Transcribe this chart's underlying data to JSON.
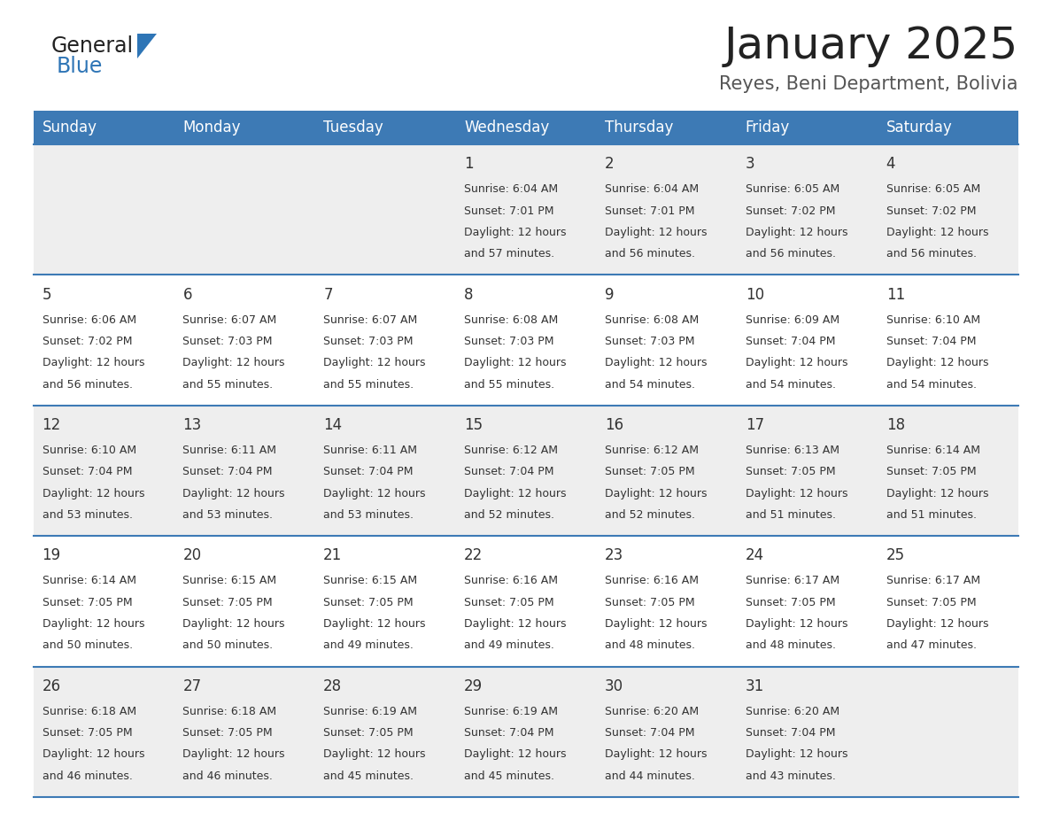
{
  "title": "January 2025",
  "subtitle": "Reyes, Beni Department, Bolivia",
  "header_bg_color": "#3D7AB5",
  "header_text_color": "#FFFFFF",
  "row_bg_colors": [
    "#EEEEEE",
    "#FFFFFF",
    "#EEEEEE",
    "#FFFFFF",
    "#EEEEEE"
  ],
  "cell_text_color": "#333333",
  "day_num_color": "#333333",
  "divider_color": "#3D7AB5",
  "days_of_week": [
    "Sunday",
    "Monday",
    "Tuesday",
    "Wednesday",
    "Thursday",
    "Friday",
    "Saturday"
  ],
  "weeks": [
    [
      {
        "day": null,
        "info": null
      },
      {
        "day": null,
        "info": null
      },
      {
        "day": null,
        "info": null
      },
      {
        "day": 1,
        "info": {
          "sunrise": "6:04 AM",
          "sunset": "7:01 PM",
          "daylight": "12 hours",
          "daylight2": "and 57 minutes."
        }
      },
      {
        "day": 2,
        "info": {
          "sunrise": "6:04 AM",
          "sunset": "7:01 PM",
          "daylight": "12 hours",
          "daylight2": "and 56 minutes."
        }
      },
      {
        "day": 3,
        "info": {
          "sunrise": "6:05 AM",
          "sunset": "7:02 PM",
          "daylight": "12 hours",
          "daylight2": "and 56 minutes."
        }
      },
      {
        "day": 4,
        "info": {
          "sunrise": "6:05 AM",
          "sunset": "7:02 PM",
          "daylight": "12 hours",
          "daylight2": "and 56 minutes."
        }
      }
    ],
    [
      {
        "day": 5,
        "info": {
          "sunrise": "6:06 AM",
          "sunset": "7:02 PM",
          "daylight": "12 hours",
          "daylight2": "and 56 minutes."
        }
      },
      {
        "day": 6,
        "info": {
          "sunrise": "6:07 AM",
          "sunset": "7:03 PM",
          "daylight": "12 hours",
          "daylight2": "and 55 minutes."
        }
      },
      {
        "day": 7,
        "info": {
          "sunrise": "6:07 AM",
          "sunset": "7:03 PM",
          "daylight": "12 hours",
          "daylight2": "and 55 minutes."
        }
      },
      {
        "day": 8,
        "info": {
          "sunrise": "6:08 AM",
          "sunset": "7:03 PM",
          "daylight": "12 hours",
          "daylight2": "and 55 minutes."
        }
      },
      {
        "day": 9,
        "info": {
          "sunrise": "6:08 AM",
          "sunset": "7:03 PM",
          "daylight": "12 hours",
          "daylight2": "and 54 minutes."
        }
      },
      {
        "day": 10,
        "info": {
          "sunrise": "6:09 AM",
          "sunset": "7:04 PM",
          "daylight": "12 hours",
          "daylight2": "and 54 minutes."
        }
      },
      {
        "day": 11,
        "info": {
          "sunrise": "6:10 AM",
          "sunset": "7:04 PM",
          "daylight": "12 hours",
          "daylight2": "and 54 minutes."
        }
      }
    ],
    [
      {
        "day": 12,
        "info": {
          "sunrise": "6:10 AM",
          "sunset": "7:04 PM",
          "daylight": "12 hours",
          "daylight2": "and 53 minutes."
        }
      },
      {
        "day": 13,
        "info": {
          "sunrise": "6:11 AM",
          "sunset": "7:04 PM",
          "daylight": "12 hours",
          "daylight2": "and 53 minutes."
        }
      },
      {
        "day": 14,
        "info": {
          "sunrise": "6:11 AM",
          "sunset": "7:04 PM",
          "daylight": "12 hours",
          "daylight2": "and 53 minutes."
        }
      },
      {
        "day": 15,
        "info": {
          "sunrise": "6:12 AM",
          "sunset": "7:04 PM",
          "daylight": "12 hours",
          "daylight2": "and 52 minutes."
        }
      },
      {
        "day": 16,
        "info": {
          "sunrise": "6:12 AM",
          "sunset": "7:05 PM",
          "daylight": "12 hours",
          "daylight2": "and 52 minutes."
        }
      },
      {
        "day": 17,
        "info": {
          "sunrise": "6:13 AM",
          "sunset": "7:05 PM",
          "daylight": "12 hours",
          "daylight2": "and 51 minutes."
        }
      },
      {
        "day": 18,
        "info": {
          "sunrise": "6:14 AM",
          "sunset": "7:05 PM",
          "daylight": "12 hours",
          "daylight2": "and 51 minutes."
        }
      }
    ],
    [
      {
        "day": 19,
        "info": {
          "sunrise": "6:14 AM",
          "sunset": "7:05 PM",
          "daylight": "12 hours",
          "daylight2": "and 50 minutes."
        }
      },
      {
        "day": 20,
        "info": {
          "sunrise": "6:15 AM",
          "sunset": "7:05 PM",
          "daylight": "12 hours",
          "daylight2": "and 50 minutes."
        }
      },
      {
        "day": 21,
        "info": {
          "sunrise": "6:15 AM",
          "sunset": "7:05 PM",
          "daylight": "12 hours",
          "daylight2": "and 49 minutes."
        }
      },
      {
        "day": 22,
        "info": {
          "sunrise": "6:16 AM",
          "sunset": "7:05 PM",
          "daylight": "12 hours",
          "daylight2": "and 49 minutes."
        }
      },
      {
        "day": 23,
        "info": {
          "sunrise": "6:16 AM",
          "sunset": "7:05 PM",
          "daylight": "12 hours",
          "daylight2": "and 48 minutes."
        }
      },
      {
        "day": 24,
        "info": {
          "sunrise": "6:17 AM",
          "sunset": "7:05 PM",
          "daylight": "12 hours",
          "daylight2": "and 48 minutes."
        }
      },
      {
        "day": 25,
        "info": {
          "sunrise": "6:17 AM",
          "sunset": "7:05 PM",
          "daylight": "12 hours",
          "daylight2": "and 47 minutes."
        }
      }
    ],
    [
      {
        "day": 26,
        "info": {
          "sunrise": "6:18 AM",
          "sunset": "7:05 PM",
          "daylight": "12 hours",
          "daylight2": "and 46 minutes."
        }
      },
      {
        "day": 27,
        "info": {
          "sunrise": "6:18 AM",
          "sunset": "7:05 PM",
          "daylight": "12 hours",
          "daylight2": "and 46 minutes."
        }
      },
      {
        "day": 28,
        "info": {
          "sunrise": "6:19 AM",
          "sunset": "7:05 PM",
          "daylight": "12 hours",
          "daylight2": "and 45 minutes."
        }
      },
      {
        "day": 29,
        "info": {
          "sunrise": "6:19 AM",
          "sunset": "7:04 PM",
          "daylight": "12 hours",
          "daylight2": "and 45 minutes."
        }
      },
      {
        "day": 30,
        "info": {
          "sunrise": "6:20 AM",
          "sunset": "7:04 PM",
          "daylight": "12 hours",
          "daylight2": "and 44 minutes."
        }
      },
      {
        "day": 31,
        "info": {
          "sunrise": "6:20 AM",
          "sunset": "7:04 PM",
          "daylight": "12 hours",
          "daylight2": "and 43 minutes."
        }
      },
      {
        "day": null,
        "info": null
      }
    ]
  ],
  "logo_general_color": "#222222",
  "logo_blue_color": "#2E75B6",
  "logo_triangle_color": "#2E75B6",
  "title_fontsize": 36,
  "subtitle_fontsize": 15,
  "header_fontsize": 12,
  "day_num_fontsize": 12,
  "cell_fontsize": 9
}
